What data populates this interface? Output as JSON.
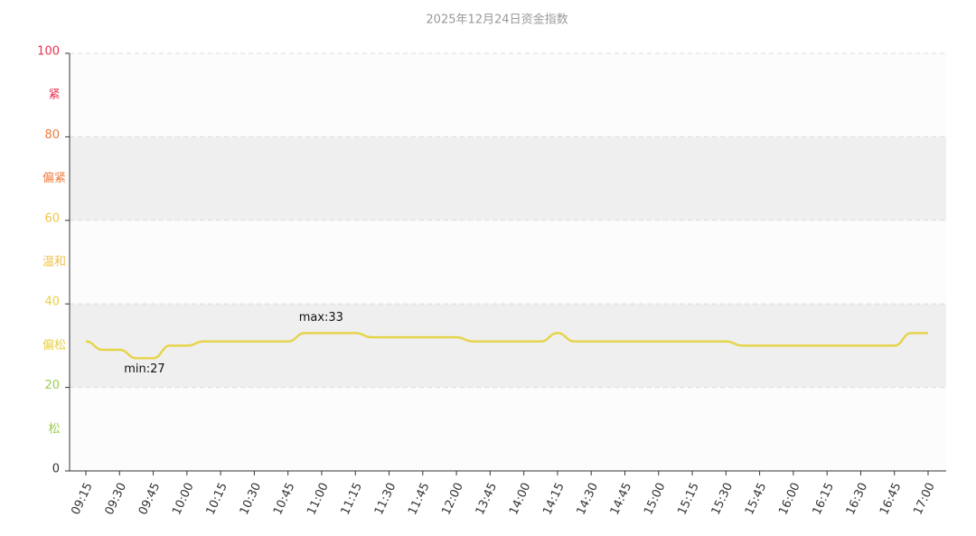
{
  "chart_data": {
    "type": "line",
    "title": "2025年12月24日资金指数",
    "categories": [
      "09:15",
      null,
      "09:30",
      null,
      "09:45",
      null,
      "10:00",
      null,
      "10:15",
      null,
      "10:30",
      null,
      "10:45",
      null,
      "11:00",
      null,
      "11:15",
      null,
      "11:30",
      null,
      "11:45",
      null,
      "12:00",
      null,
      "13:45",
      null,
      "14:00",
      null,
      "14:15",
      null,
      "14:30",
      null,
      "14:45",
      null,
      "15:00",
      null,
      "15:15",
      null,
      "15:30",
      null,
      "15:45",
      null,
      "16:00",
      null,
      "16:15",
      null,
      "16:30",
      null,
      "16:45",
      null,
      "17:00"
    ],
    "values": [
      31,
      29,
      29,
      27,
      27,
      30,
      30,
      31,
      31,
      31,
      31,
      31,
      31,
      33,
      33,
      33,
      33,
      32,
      32,
      32,
      32,
      32,
      32,
      31,
      31,
      31,
      31,
      31,
      33,
      31,
      31,
      31,
      31,
      31,
      31,
      31,
      31,
      31,
      31,
      30,
      30,
      30,
      30,
      30,
      30,
      30,
      30,
      30,
      30,
      33,
      33
    ],
    "color": "#e6d44c",
    "ylim": [
      0,
      100
    ],
    "yticks": [
      0,
      20,
      40,
      60,
      80,
      100
    ],
    "ytick_colors": [
      "#333333",
      "#9ccc4c",
      "#e8d040",
      "#f2c24a",
      "#f07a3c",
      "#e8304f"
    ],
    "bands": [
      {
        "label": "松",
        "color": "#9ccc4c",
        "fill": "#fcfcfc"
      },
      {
        "label": "偏松",
        "color": "#e8d040",
        "fill": "#efefef"
      },
      {
        "label": "温和",
        "color": "#f2c24a",
        "fill": "#fcfcfc"
      },
      {
        "label": "偏紧",
        "color": "#f07a3c",
        "fill": "#efefef"
      },
      {
        "label": "紧",
        "color": "#e8304f",
        "fill": "#fcfcfc"
      }
    ],
    "max_label": "max:33",
    "min_label": "min:27",
    "grid": true
  }
}
